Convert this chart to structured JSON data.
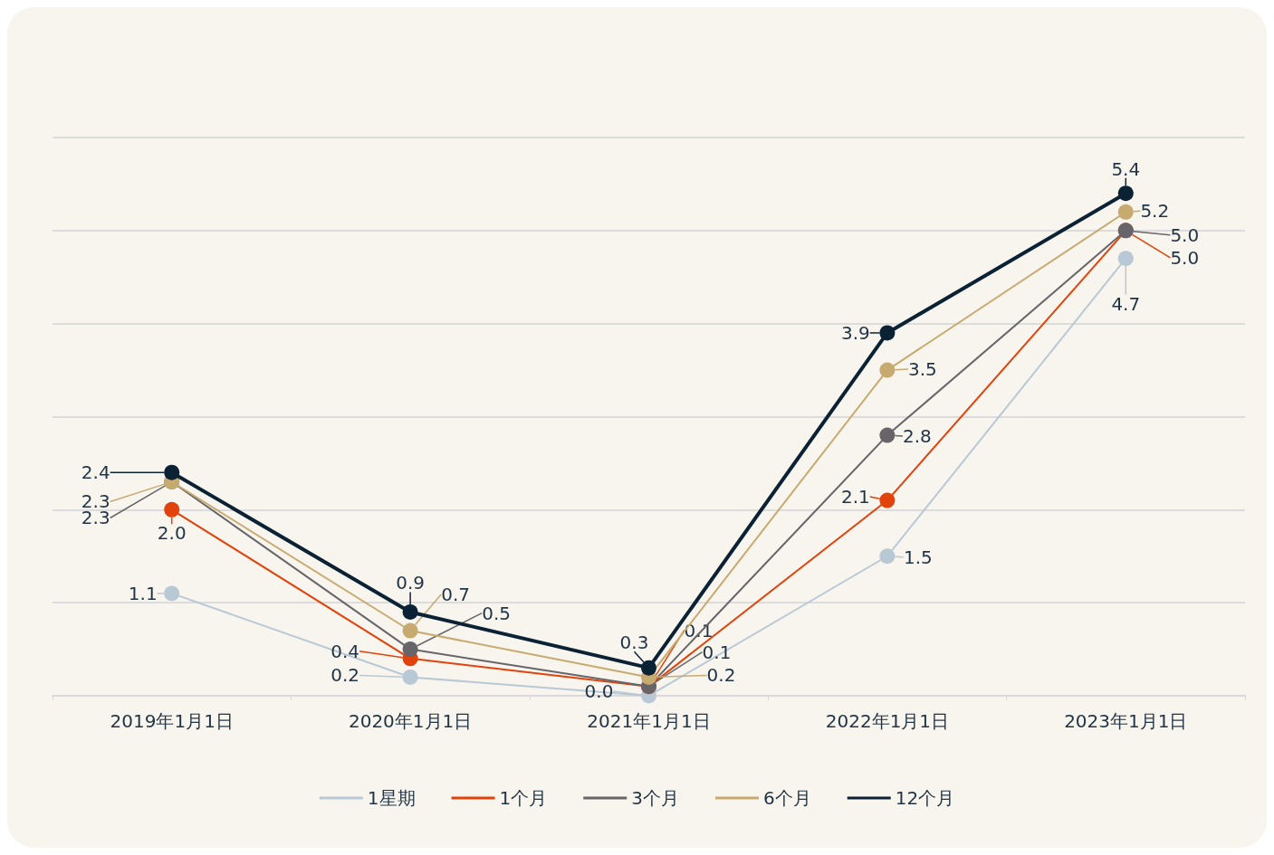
{
  "chart_data": {
    "type": "line",
    "categories": [
      "2019年1月1日",
      "2020年1月1日",
      "2021年1月1日",
      "2022年1月1日",
      "2023年1月1日"
    ],
    "series": [
      {
        "name": "1星期",
        "color": "#b9c8d5",
        "values": [
          1.1,
          0.2,
          0.0,
          1.5,
          4.7
        ],
        "value_labels": [
          "1.1",
          "0.2",
          "0.0",
          "1.5",
          "4.7"
        ]
      },
      {
        "name": "1个月",
        "color": "#e2420b",
        "values": [
          2.0,
          0.4,
          0.1,
          2.1,
          5.0
        ],
        "value_labels": [
          "2.0",
          "0.4",
          "0.1",
          "2.1",
          "5.0"
        ]
      },
      {
        "name": "3个月",
        "color": "#67656a",
        "values": [
          2.3,
          0.5,
          0.1,
          2.8,
          5.0
        ],
        "value_labels": [
          "2.3",
          "0.5",
          "0.1",
          "2.8",
          "5.0"
        ]
      },
      {
        "name": "6个月",
        "color": "#c7aa6f",
        "values": [
          2.3,
          0.7,
          0.2,
          3.5,
          5.2
        ],
        "value_labels": [
          "2.3",
          "0.7",
          "0.2",
          "3.5",
          "5.2"
        ]
      },
      {
        "name": "12个月",
        "color": "#0b2235",
        "values": [
          2.4,
          0.9,
          0.3,
          3.9,
          5.4
        ],
        "value_labels": [
          "2.4",
          "0.9",
          "0.3",
          "3.9",
          "5.4"
        ]
      }
    ],
    "ylim": [
      0,
      6
    ],
    "yticks": [
      {
        "value": 0,
        "label": null
      },
      {
        "value": 1,
        "label": null
      },
      {
        "value": 2,
        "label": null
      },
      {
        "value": 3,
        "label": null
      },
      {
        "value": 4,
        "label": null
      },
      {
        "value": 5,
        "label": null
      },
      {
        "value": 6,
        "label": null
      }
    ],
    "tick_labels": "x",
    "grid": "y",
    "legend": "bottom",
    "marker": "circle",
    "line_style": "solid"
  }
}
